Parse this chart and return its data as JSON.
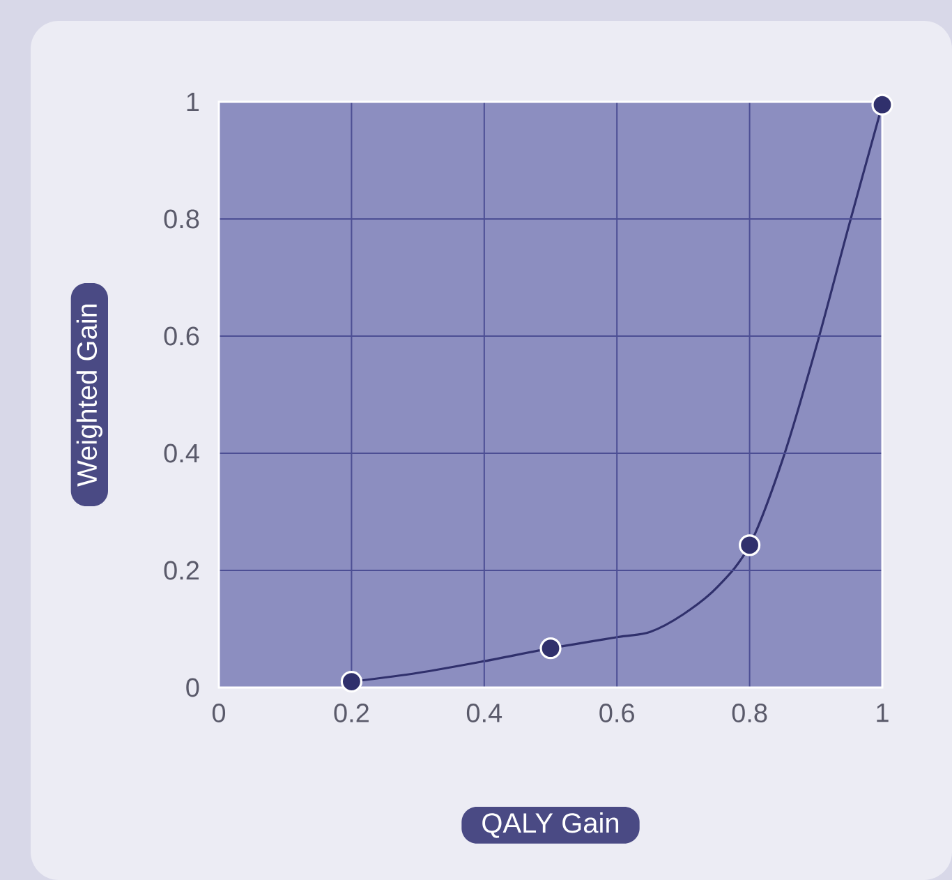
{
  "chart_data": {
    "type": "line",
    "xlabel": "QALY Gain",
    "ylabel": "Weighted Gain",
    "xlim": [
      0,
      1
    ],
    "ylim": [
      0,
      1
    ],
    "xticks": [
      0,
      0.2,
      0.4,
      0.6,
      0.8,
      1
    ],
    "yticks": [
      0,
      0.2,
      0.4,
      0.6,
      0.8,
      1
    ],
    "grid": true,
    "series": [
      {
        "marker": "none",
        "line_style": "solid",
        "color": "#30306c",
        "x": [
          0.2,
          0.3,
          0.4,
          0.5,
          0.6,
          0.65,
          0.7,
          0.75,
          0.8,
          0.85,
          0.9,
          0.95,
          1.0
        ],
        "values": [
          0.01,
          0.025,
          0.045,
          0.067,
          0.086,
          0.095,
          0.125,
          0.17,
          0.243,
          0.39,
          0.58,
          0.79,
          0.995
        ]
      },
      {
        "type": "scatter",
        "marker": "circle",
        "color": "#30306c",
        "x": [
          0.2,
          0.5,
          0.8,
          1.0
        ],
        "values": [
          0.01,
          0.067,
          0.243,
          0.995
        ]
      }
    ]
  }
}
